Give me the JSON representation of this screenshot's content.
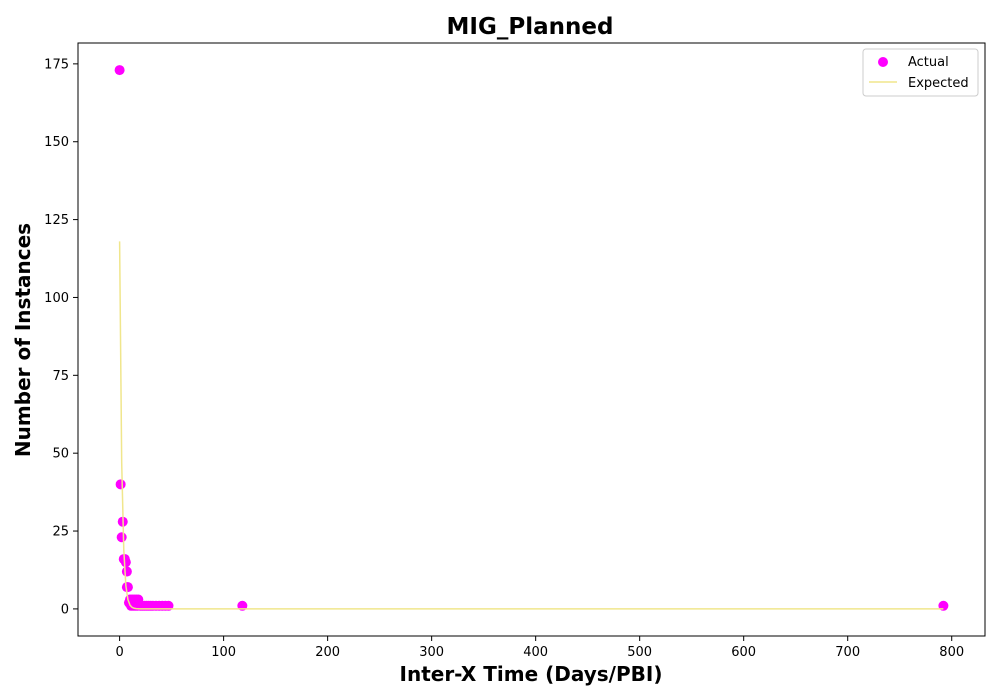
{
  "chart_data": {
    "type": "scatter",
    "title": "MIG_Planned",
    "xlabel": "Inter-X Time (Days/PBI)",
    "ylabel": "Number of Instances",
    "xlim": [
      -40,
      832
    ],
    "ylim": [
      -8.7,
      181.7
    ],
    "xticks": [
      0,
      100,
      200,
      300,
      400,
      500,
      600,
      700,
      800
    ],
    "yticks": [
      0,
      25,
      50,
      75,
      100,
      125,
      150,
      175
    ],
    "grid": false,
    "legend_position": "top-right",
    "series": [
      {
        "name": "Actual",
        "kind": "scatter",
        "color": "#ff00ff",
        "points": [
          [
            0,
            173
          ],
          [
            1,
            40
          ],
          [
            2,
            23
          ],
          [
            3,
            28
          ],
          [
            4,
            16
          ],
          [
            5,
            16
          ],
          [
            6,
            15
          ],
          [
            7,
            12
          ],
          [
            7,
            7
          ],
          [
            8,
            7
          ],
          [
            9,
            2
          ],
          [
            10,
            3
          ],
          [
            11,
            1
          ],
          [
            12,
            3
          ],
          [
            13,
            1
          ],
          [
            14,
            3
          ],
          [
            15,
            1
          ],
          [
            16,
            3
          ],
          [
            17,
            1
          ],
          [
            18,
            3
          ],
          [
            20,
            1
          ],
          [
            22,
            1
          ],
          [
            24,
            1
          ],
          [
            26,
            1
          ],
          [
            28,
            1
          ],
          [
            30,
            1
          ],
          [
            32,
            1
          ],
          [
            35,
            1
          ],
          [
            38,
            1
          ],
          [
            41,
            1
          ],
          [
            44,
            1
          ],
          [
            47,
            1
          ],
          [
            118,
            1
          ],
          [
            792,
            1
          ]
        ]
      },
      {
        "name": "Expected",
        "kind": "line",
        "color": "#f0e68c",
        "points": [
          [
            0,
            118
          ],
          [
            2,
            47
          ],
          [
            4,
            19
          ],
          [
            6,
            7.5
          ],
          [
            8,
            3
          ],
          [
            10,
            1.2
          ],
          [
            12,
            0.5
          ],
          [
            14,
            0.2
          ],
          [
            16,
            0.1
          ],
          [
            20,
            0
          ],
          [
            50,
            0
          ],
          [
            120,
            0
          ],
          [
            792,
            0
          ]
        ]
      }
    ]
  }
}
